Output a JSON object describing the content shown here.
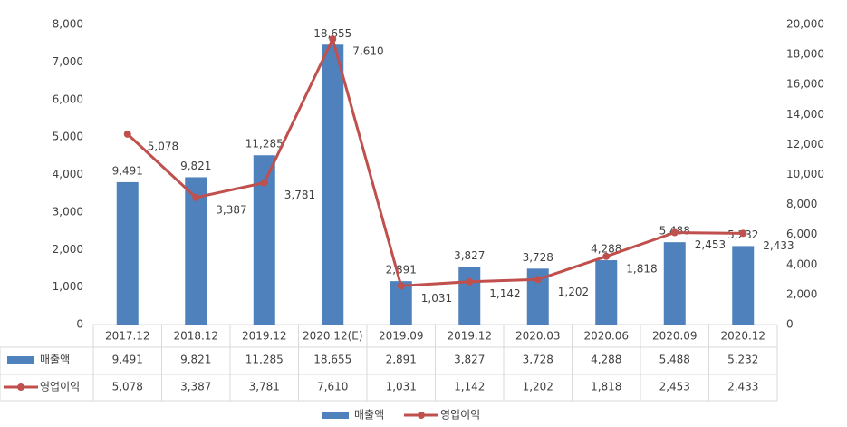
{
  "chart_data": {
    "type": "bar",
    "categories": [
      "2017.12",
      "2018.12",
      "2019.12",
      "2020.12(E)",
      "2019.09",
      "2019.12",
      "2020.03",
      "2020.06",
      "2020.09",
      "2020.12"
    ],
    "series": [
      {
        "name": "매출액",
        "type": "bar",
        "axis": "y2",
        "color": "#4f81bd",
        "values": [
          9491,
          9821,
          11285,
          18655,
          2891,
          3827,
          3728,
          4288,
          5488,
          5232
        ],
        "value_labels": [
          "9,491",
          "9,821",
          "11,285",
          "18,655",
          "2,891",
          "3,827",
          "3,728",
          "4,288",
          "5,488",
          "5,232"
        ]
      },
      {
        "name": "영업이익",
        "type": "line",
        "axis": "y",
        "color": "#c0504d",
        "values": [
          5078,
          3387,
          3781,
          7610,
          1031,
          1142,
          1202,
          1818,
          2453,
          2433
        ],
        "value_labels": [
          "5,078",
          "3,387",
          "3,781",
          "7,610",
          "1,031",
          "1,142",
          "1,202",
          "1,818",
          "2,453",
          "2,433"
        ]
      }
    ],
    "ylim": [
      0,
      8000
    ],
    "yticks": [
      0,
      {
        "value": 1000,
        "label": "1,000"
      },
      {
        "value": 2000,
        "label": "2,000"
      },
      {
        "value": 3000,
        "label": "3,000"
      },
      {
        "value": 4000,
        "label": "4,000"
      },
      {
        "value": 5000,
        "label": "5,000"
      },
      {
        "value": 6000,
        "label": "6,000"
      },
      {
        "value": 7000,
        "label": "7,000"
      },
      {
        "value": 8000,
        "label": "8,000"
      }
    ],
    "y2lim": [
      0,
      20000
    ],
    "y2ticks": [
      0,
      {
        "value": 2000,
        "label": "2,000"
      },
      {
        "value": 4000,
        "label": "4,000"
      },
      {
        "value": 6000,
        "label": "6,000"
      },
      {
        "value": 8000,
        "label": "8,000"
      },
      {
        "value": 10000,
        "label": "10,000"
      },
      {
        "value": 12000,
        "label": "12,000"
      },
      {
        "value": 14000,
        "label": "14,000"
      },
      {
        "value": 16000,
        "label": "16,000"
      },
      {
        "value": 18000,
        "label": "18,000"
      },
      {
        "value": 20000,
        "label": "20,000"
      }
    ],
    "grid": false,
    "legend": "bottom",
    "data_table": true
  }
}
